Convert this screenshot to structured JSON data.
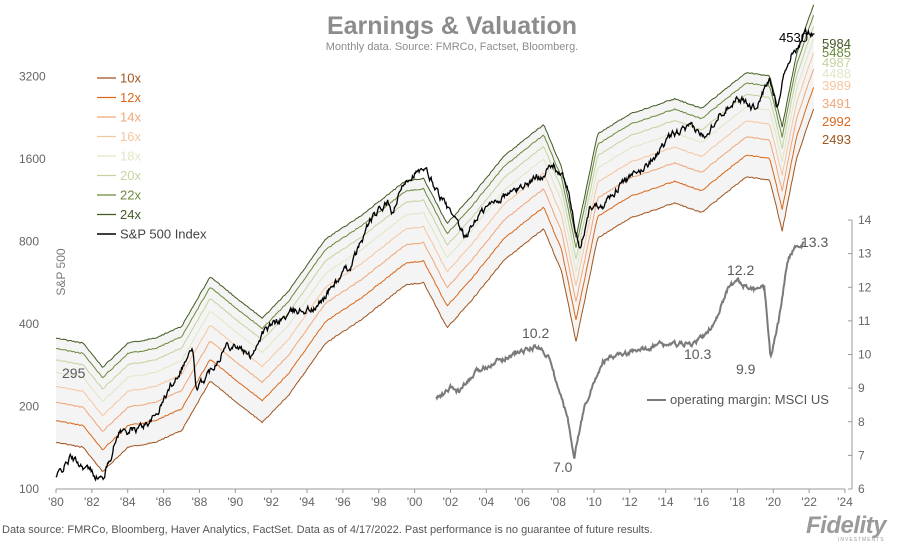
{
  "chart_data": {
    "type": "line",
    "title": "Earnings & Valuation",
    "subtitle": "Monthly data.  Source: FMRCo, Factset, Bloomberg.",
    "ylabel": "S&P 500",
    "y_scale": "log",
    "ylim": [
      100,
      5600
    ],
    "yticks": [
      100,
      200,
      400,
      800,
      1600,
      3200
    ],
    "xlim": [
      1980,
      2024
    ],
    "xticks": [
      "'80",
      "'82",
      "'84",
      "'86",
      "'88",
      "'90",
      "'92",
      "'94",
      "'96",
      "'98",
      "'00",
      "'02",
      "'04",
      "'06",
      "'08",
      "'10",
      "'12",
      "'14",
      "'16",
      "'18",
      "'20",
      "'22",
      "'24"
    ],
    "legend_position": "top-left",
    "multiple_series": [
      {
        "name": "10x",
        "value": 10,
        "color": "#a0551e",
        "end_label": "2493"
      },
      {
        "name": "12x",
        "value": 12,
        "color": "#d9681c",
        "end_label": "2992"
      },
      {
        "name": "14x",
        "value": 14,
        "color": "#f0a679",
        "end_label": "3491"
      },
      {
        "name": "16x",
        "value": 16,
        "color": "#f6c6a0",
        "end_label": "3989"
      },
      {
        "name": "18x",
        "value": 18,
        "color": "#dfe7c6",
        "end_label": "4488"
      },
      {
        "name": "20x",
        "value": 20,
        "color": "#c3d49f",
        "end_label": "4987"
      },
      {
        "name": "22x",
        "value": 22,
        "color": "#6b8a3c",
        "end_label": "5485"
      },
      {
        "name": "24x",
        "value": 24,
        "color": "#3f5a22",
        "end_label": "5984"
      }
    ],
    "eps_anchor_years": [
      1980,
      1981.5,
      1982.6,
      1984,
      1985.5,
      1987,
      1988.6,
      1990,
      1991.5,
      1993,
      1995,
      1997,
      1999.5,
      2000.5,
      2001.8,
      2003,
      2005,
      2007.2,
      2008.2,
      2009.0,
      2010.2,
      2012,
      2014.5,
      2016,
      2018.5,
      2019.8,
      2020.5,
      2021.3,
      2022.3
    ],
    "eps_anchor_values": [
      14.8,
      14.2,
      11.6,
      14.2,
      14.8,
      16.3,
      24.8,
      20.9,
      17.5,
      22.1,
      33.9,
      41.4,
      55.6,
      56.6,
      38.8,
      47.3,
      68.5,
      89.1,
      62.0,
      34.4,
      82.2,
      97.4,
      110.7,
      102.2,
      137.9,
      134.1,
      87.6,
      161.6,
      249.3
    ],
    "sp500": {
      "name": "S&P 500 Index",
      "color": "#000000",
      "end_label": "4530",
      "anchor_years": [
        1980,
        1980.8,
        1981.6,
        1982.6,
        1983.5,
        1984.5,
        1985.5,
        1986.5,
        1987.6,
        1987.85,
        1988.5,
        1989.5,
        1990.0,
        1990.8,
        1991.5,
        1992.5,
        1993.5,
        1994.5,
        1995.5,
        1996.5,
        1997.5,
        1998.5,
        1998.7,
        1999.5,
        2000.0,
        2000.7,
        2001.5,
        2002.8,
        2003.5,
        2004.5,
        2005.5,
        2006.5,
        2007.8,
        2008.5,
        2009.2,
        2009.8,
        2010.5,
        2011.5,
        2012.5,
        2013.5,
        2014.5,
        2015.5,
        2016.1,
        2017.0,
        2018.0,
        2018.95,
        2019.8,
        2020.2,
        2020.6,
        2021.0,
        2021.5,
        2021.95,
        2022.3
      ],
      "anchor_values": [
        110,
        130,
        120,
        108,
        162,
        165,
        182,
        245,
        325,
        228,
        265,
        335,
        338,
        303,
        370,
        415,
        450,
        455,
        560,
        660,
        950,
        1110,
        990,
        1350,
        1430,
        1420,
        1150,
        820,
        990,
        1130,
        1220,
        1330,
        1520,
        1280,
        730,
        1080,
        1100,
        1300,
        1420,
        1680,
        1980,
        2070,
        1940,
        2350,
        2700,
        2450,
        3100,
        2500,
        3300,
        3800,
        4300,
        4760,
        4530
      ]
    },
    "operating_margin": {
      "name": "operating margin: MSCI US",
      "color": "#7a7a7a",
      "right_axis_ticks": [
        6,
        7,
        8,
        9,
        10,
        11,
        12,
        13,
        14
      ],
      "ylim": [
        6,
        14
      ],
      "anchor_years": [
        2001.2,
        2001.6,
        2002.0,
        2002.5,
        2003.5,
        2004.5,
        2005.5,
        2006.5,
        2007.0,
        2007.5,
        2008.0,
        2008.5,
        2008.9,
        2009.5,
        2010.5,
        2011.5,
        2012.5,
        2013.5,
        2014.5,
        2015.5,
        2016.2,
        2016.8,
        2017.5,
        2018.0,
        2018.5,
        2019.0,
        2019.5,
        2019.85,
        2020.3,
        2020.8,
        2021.2,
        2021.7
      ],
      "anchor_values": [
        8.7,
        8.8,
        9.0,
        8.9,
        9.5,
        9.8,
        10.0,
        10.2,
        10.2,
        9.9,
        9.0,
        8.2,
        7.0,
        8.5,
        9.8,
        10.0,
        10.1,
        10.3,
        10.3,
        10.3,
        10.6,
        11.0,
        12.0,
        12.2,
        12.0,
        11.9,
        12.0,
        9.9,
        11.0,
        12.8,
        13.2,
        13.3
      ]
    },
    "annotations": [
      {
        "text": "295"
      },
      {
        "text": "10.2"
      },
      {
        "text": "7.0"
      },
      {
        "text": "10.3"
      },
      {
        "text": "12.2"
      },
      {
        "text": "9.9"
      },
      {
        "text": "13.3"
      }
    ]
  },
  "footer": "Data source: FMRCo, Bloomberg, Haver Analytics, FactSet. Data as of 4/17/2022. Past performance is no guarantee of future results.",
  "logo": "Fidelity",
  "logo_sub": "INVESTMENTS"
}
